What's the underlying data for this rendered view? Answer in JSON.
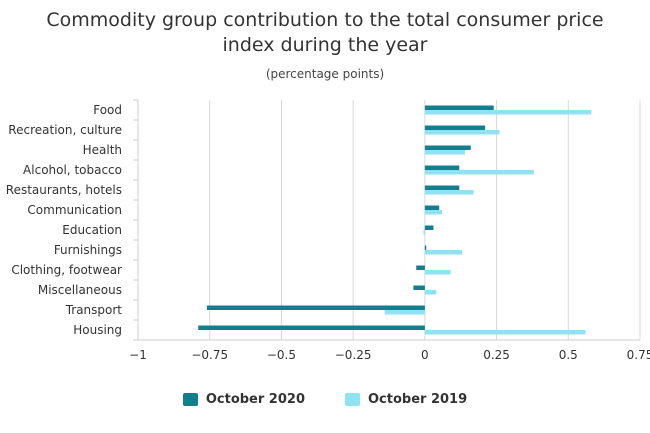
{
  "chart_data": {
    "type": "bar",
    "orientation": "horizontal",
    "title_line1": "Commodity group contribution to the total consumer price",
    "title_line2": "index during the year",
    "subtitle": "(percentage points)",
    "categories": [
      "Food",
      "Recreation, culture",
      "Health",
      "Alcohol, tobacco",
      "Restaurants, hotels",
      "Communication",
      "Education",
      "Furnishings",
      "Clothing, footwear",
      "Miscellaneous",
      "Transport",
      "Housing"
    ],
    "series": [
      {
        "name": "October 2020",
        "color": "#137f8e",
        "values": [
          0.24,
          0.21,
          0.16,
          0.12,
          0.12,
          0.05,
          0.03,
          0.005,
          -0.03,
          -0.04,
          -0.76,
          -0.79
        ]
      },
      {
        "name": "October 2019",
        "color": "#8fe2f1",
        "values": [
          0.58,
          0.26,
          0.14,
          0.38,
          0.17,
          0.06,
          -0.005,
          0.13,
          0.09,
          0.04,
          -0.14,
          0.56
        ]
      }
    ],
    "xlim": [
      -1,
      0.75
    ],
    "ticks": [
      -1,
      -0.75,
      -0.5,
      -0.25,
      0,
      0.25,
      0.5,
      0.75
    ],
    "tick_labels": [
      "−1",
      "−0.75",
      "−0.5",
      "−0.25",
      "0",
      "0.25",
      "0.5",
      "0.75"
    ],
    "grid": true,
    "legend_position": "bottom-center"
  }
}
